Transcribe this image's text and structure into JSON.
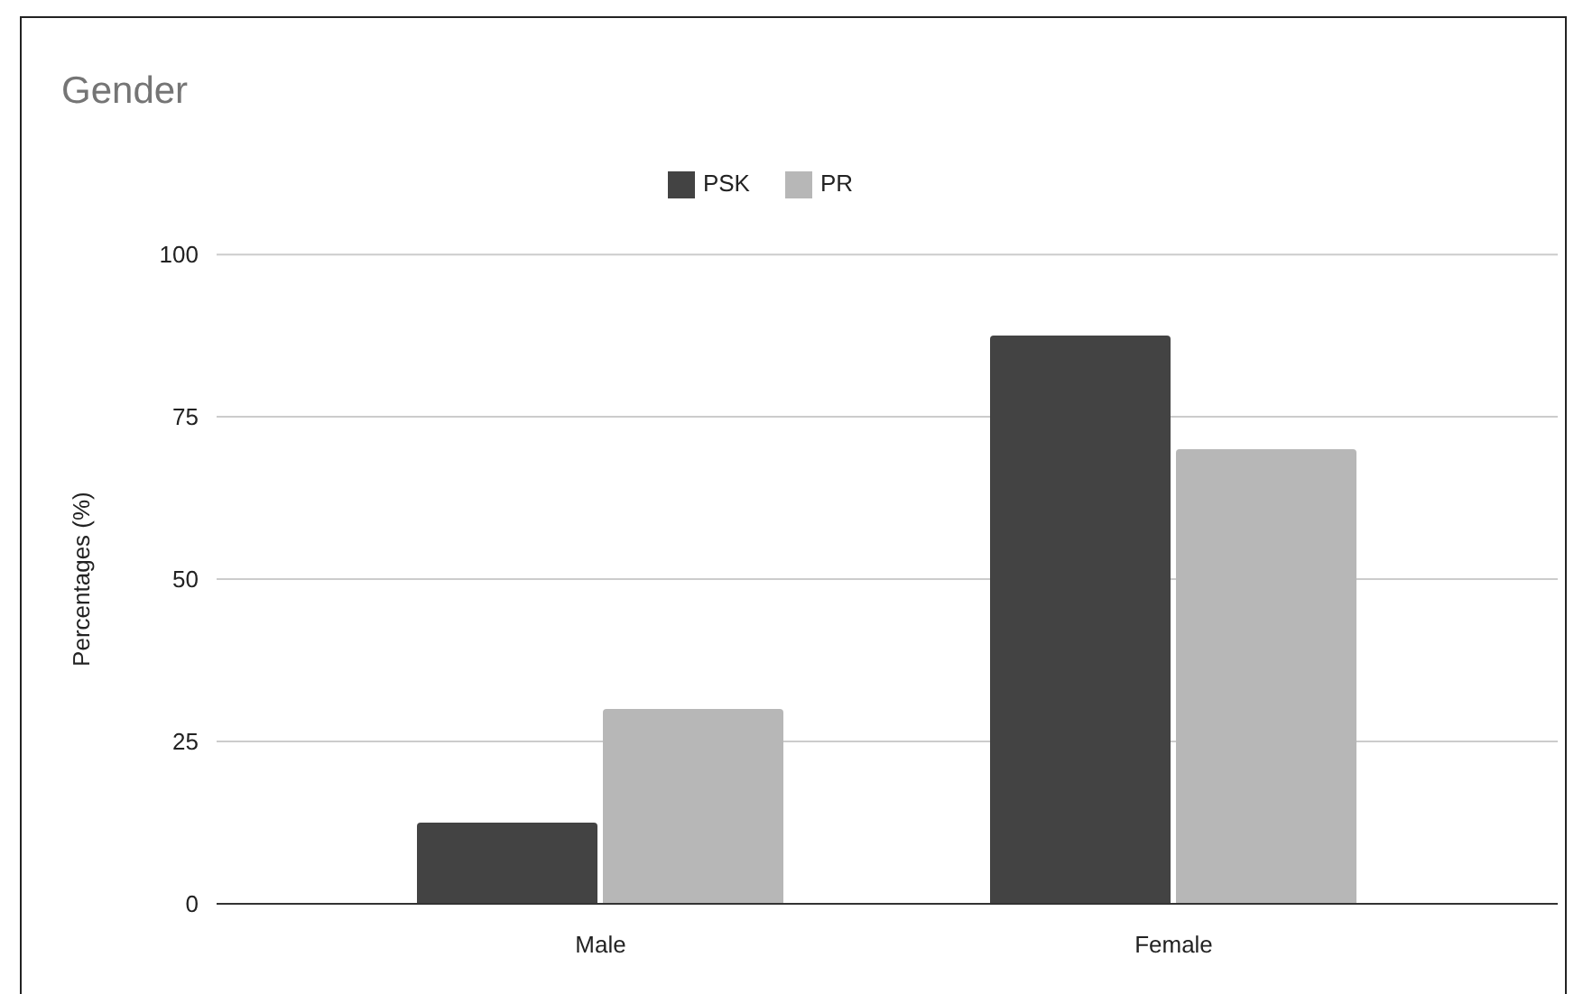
{
  "chart_data": {
    "type": "bar",
    "title": "Gender",
    "ylabel": "Percentages (%)",
    "categories": [
      "Male",
      "Female"
    ],
    "series": [
      {
        "name": "PSK",
        "color": "#434343",
        "values": [
          12.5,
          87.5
        ]
      },
      {
        "name": "PR",
        "color": "#b7b7b7",
        "values": [
          30,
          70
        ]
      }
    ],
    "ylim": [
      0,
      100
    ],
    "yticks": [
      0,
      25,
      50,
      75,
      100
    ],
    "grid": "y",
    "legend": "top"
  }
}
